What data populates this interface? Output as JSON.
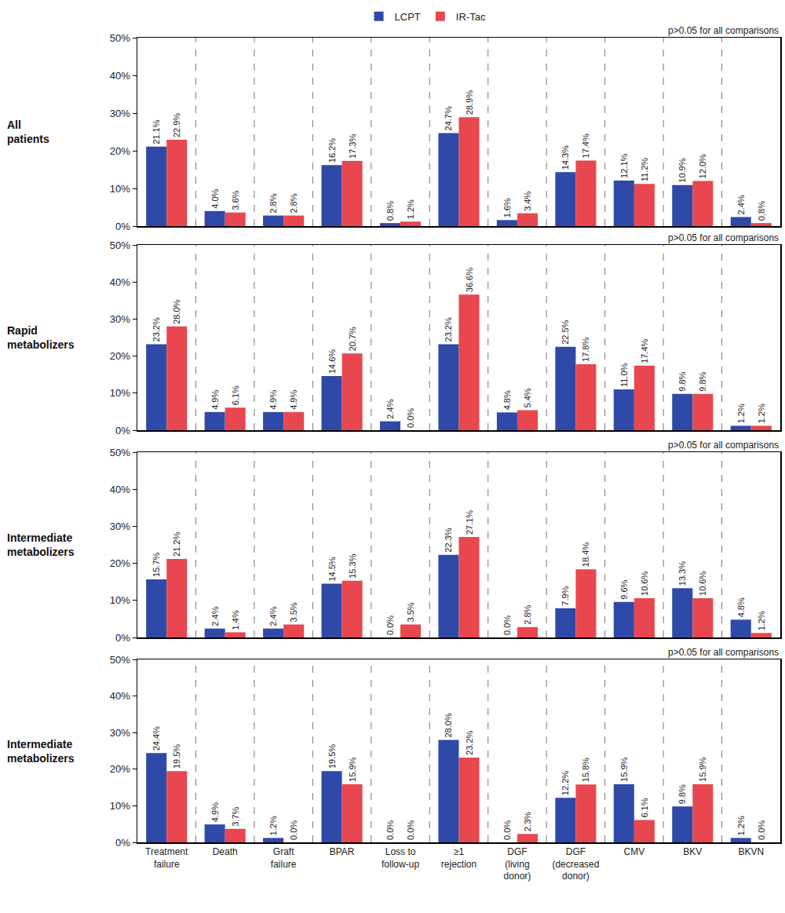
{
  "chart_data": [
    {
      "type": "bar",
      "title": "All\npatients",
      "categories": [
        "Treatment\nfailure",
        "Death",
        "Graft\nfailure",
        "BPAR",
        "Loss to\nfollow-up",
        "≥1\nrejection",
        "DGF\n(living\ndonor)",
        "DGF\n(decreased\ndonor)",
        "CMV",
        "BKV",
        "BKVN"
      ],
      "series": [
        {
          "name": "LCPT",
          "color": "#2f49a8",
          "values": [
            21.1,
            4.0,
            2.8,
            16.2,
            0.8,
            24.7,
            1.6,
            14.3,
            12.1,
            10.9,
            2.4
          ],
          "value_labels": [
            "21.1%",
            "4.0%",
            "2.8%",
            "16.2%",
            "0.8%",
            "24.7%",
            "1.6%",
            "14.3%",
            "12.1%",
            "10.9%",
            "2.4%"
          ]
        },
        {
          "name": "IR-Tac",
          "color": "#e8474f",
          "values": [
            22.9,
            3.6,
            2.8,
            17.3,
            1.2,
            28.9,
            3.4,
            17.4,
            11.2,
            12.0,
            0.8
          ],
          "value_labels": [
            "22.9%",
            "3.6%",
            "2.8%",
            "17.3%",
            "1.2%",
            "28.9%",
            "3.4%",
            "17.4%",
            "11.2%",
            "12.0%",
            "0.8%"
          ]
        }
      ],
      "ylim": [
        0,
        50
      ],
      "yticks": [
        {
          "value": 0,
          "label": "0%"
        },
        {
          "value": 10,
          "label": "10%"
        },
        {
          "value": 20,
          "label": "20%"
        },
        {
          "value": 30,
          "label": "30%"
        },
        {
          "value": 40,
          "label": "40%"
        },
        {
          "value": 50,
          "label": "50%"
        }
      ],
      "grid": false,
      "data_labels": true,
      "legend": "top",
      "tick_labels": "y",
      "annotations": [
        "p>0.05 for all comparisons"
      ]
    },
    {
      "type": "bar",
      "title": "Rapid\nmetabolizers",
      "categories": [
        "Treatment\nfailure",
        "Death",
        "Graft\nfailure",
        "BPAR",
        "Loss to\nfollow-up",
        "≥1\nrejection",
        "DGF\n(living\ndonor)",
        "DGF\n(decreased\ndonor)",
        "CMV",
        "BKV",
        "BKVN"
      ],
      "series": [
        {
          "name": "LCPT",
          "color": "#2f49a8",
          "values": [
            23.2,
            4.9,
            4.9,
            14.6,
            2.4,
            23.2,
            4.8,
            22.5,
            11.0,
            9.8,
            1.2
          ],
          "value_labels": [
            "23.2%",
            "4.9%",
            "4.9%",
            "14.6%",
            "2.4%",
            "23.2%",
            "4.8%",
            "22.5%",
            "11.0%",
            "9.8%",
            "1.2%"
          ]
        },
        {
          "name": "IR-Tac",
          "color": "#e8474f",
          "values": [
            28.0,
            6.1,
            4.9,
            20.7,
            0.0,
            36.6,
            5.4,
            17.8,
            17.4,
            9.8,
            1.2
          ],
          "value_labels": [
            "28.0%",
            "6.1%",
            "4.9%",
            "20.7%",
            "0.0%",
            "36.6%",
            "5.4%",
            "17.8%",
            "17.4%",
            "9.8%",
            "1.2%"
          ]
        }
      ],
      "ylim": [
        0,
        50
      ],
      "yticks": [
        {
          "value": 0,
          "label": "0%"
        },
        {
          "value": 10,
          "label": "10%"
        },
        {
          "value": 20,
          "label": "20%"
        },
        {
          "value": 30,
          "label": "30%"
        },
        {
          "value": 40,
          "label": "40%"
        },
        {
          "value": 50,
          "label": "50%"
        }
      ],
      "grid": false,
      "data_labels": true,
      "tick_labels": "y",
      "annotations": [
        "p>0.05 for all comparisons"
      ]
    },
    {
      "type": "bar",
      "title": "Intermediate\nmetabolizers",
      "categories": [
        "Treatment\nfailure",
        "Death",
        "Graft\nfailure",
        "BPAR",
        "Loss to\nfollow-up",
        "≥1\nrejection",
        "DGF\n(living\ndonor)",
        "DGF\n(decreased\ndonor)",
        "CMV",
        "BKV",
        "BKVN"
      ],
      "series": [
        {
          "name": "LCPT",
          "color": "#2f49a8",
          "values": [
            15.7,
            2.4,
            2.4,
            14.5,
            0.0,
            22.3,
            0.0,
            7.9,
            9.6,
            13.3,
            4.8
          ],
          "value_labels": [
            "15.7%",
            "2.4%",
            "2.4%",
            "14.5%",
            "0.0%",
            "22.3%",
            "0.0%",
            "7.9%",
            "9.6%",
            "13.3%",
            "4.8%"
          ]
        },
        {
          "name": "IR-Tac",
          "color": "#e8474f",
          "values": [
            21.2,
            1.4,
            3.5,
            15.3,
            3.5,
            27.1,
            2.8,
            18.4,
            10.6,
            10.6,
            1.2
          ],
          "value_labels": [
            "21.2%",
            "1.4%",
            "3.5%",
            "15.3%",
            "3.5%",
            "27.1%",
            "2.8%",
            "18.4%",
            "10.6%",
            "10.6%",
            "1.2%"
          ]
        }
      ],
      "ylim": [
        0,
        50
      ],
      "yticks": [
        {
          "value": 0,
          "label": "0%"
        },
        {
          "value": 10,
          "label": "10%"
        },
        {
          "value": 20,
          "label": "20%"
        },
        {
          "value": 30,
          "label": "30%"
        },
        {
          "value": 40,
          "label": "40%"
        },
        {
          "value": 50,
          "label": "50%"
        }
      ],
      "grid": false,
      "data_labels": true,
      "tick_labels": "y",
      "annotations": [
        "p>0.05 for all comparisons"
      ]
    },
    {
      "type": "bar",
      "title": "Intermediate\nmetabolizers",
      "categories": [
        "Treatment\nfailure",
        "Death",
        "Graft\nfailure",
        "BPAR",
        "Loss to\nfollow-up",
        "≥1\nrejection",
        "DGF\n(living\ndonor)",
        "DGF\n(decreased\ndonor)",
        "CMV",
        "BKV",
        "BKVN"
      ],
      "series": [
        {
          "name": "LCPT",
          "color": "#2f49a8",
          "values": [
            24.4,
            4.9,
            1.2,
            19.5,
            0.0,
            28.0,
            0.0,
            12.2,
            15.9,
            9.8,
            1.2
          ],
          "value_labels": [
            "24.4%",
            "4.9%",
            "1.2%",
            "19.5%",
            "0.0%",
            "28.0%",
            "0.0%",
            "12.2%",
            "15.9%",
            "9.8%",
            "1.2%"
          ]
        },
        {
          "name": "IR-Tac",
          "color": "#e8474f",
          "values": [
            19.5,
            3.7,
            0.0,
            15.9,
            0.0,
            23.2,
            2.3,
            15.8,
            6.1,
            15.9,
            0.0
          ],
          "value_labels": [
            "19.5%",
            "3.7%",
            "0.0%",
            "15.9%",
            "0.0%",
            "23.2%",
            "2.3%",
            "15.8%",
            "6.1%",
            "15.9%",
            "0.0%"
          ]
        }
      ],
      "ylim": [
        0,
        50
      ],
      "yticks": [
        {
          "value": 0,
          "label": "0%"
        },
        {
          "value": 10,
          "label": "10%"
        },
        {
          "value": 20,
          "label": "20%"
        },
        {
          "value": 30,
          "label": "30%"
        },
        {
          "value": 40,
          "label": "40%"
        },
        {
          "value": 50,
          "label": "50%"
        }
      ],
      "grid": false,
      "data_labels": true,
      "annotations": [
        "p>0.05 for all comparisons"
      ]
    }
  ]
}
